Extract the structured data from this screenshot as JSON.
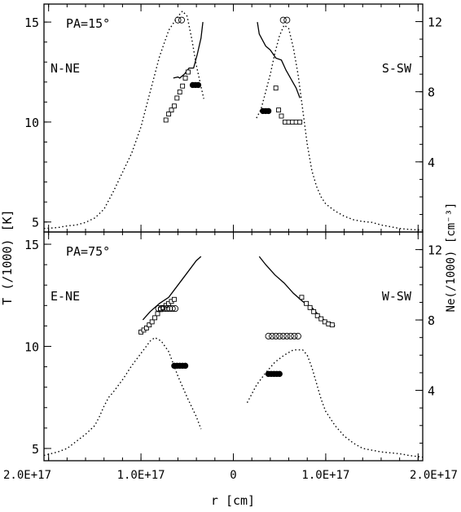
{
  "chart_data": {
    "type": "line",
    "xlabel": "r [cm]",
    "ylabel_left": "T (/1000) [K]",
    "ylabel_right": "Ne(/1000) [cm⁻³]",
    "x_tick_labels": [
      "2.0E+17",
      "1.0E+17",
      "0",
      "1.0E+17",
      "2.0E+17"
    ],
    "x_tick_values": [
      -2e+17,
      -1e+17,
      0,
      1e+17,
      2e+17
    ],
    "x_range": [
      -2.05e+17,
      2.05e+17
    ],
    "panels": [
      {
        "id": "top",
        "pa_label": "PA=15°",
        "left_label": "N-NE",
        "right_label": "S-SW",
        "y_left_range": [
          4.5,
          15.9
        ],
        "y_left_ticks": [
          5,
          10,
          15
        ],
        "y_right_ticks": [
          4,
          8,
          12
        ],
        "line_T": [
          [
            [
              -6.5e+16,
              12.2
            ],
            [
              -6e+16,
              12.25
            ],
            [
              -5.8e+16,
              12.2
            ],
            [
              -5.3e+16,
              12.4
            ],
            [
              -4.8e+16,
              12.7
            ],
            [
              -4.3e+16,
              12.7
            ],
            [
              -3.9e+16,
              13.4
            ],
            [
              -3.5e+16,
              14.2
            ],
            [
              -3.3e+16,
              15.0
            ]
          ],
          [
            [
              2.6e+16,
              15.0
            ],
            [
              2.8e+16,
              14.4
            ],
            [
              3.5e+16,
              13.8
            ],
            [
              4e+16,
              13.6
            ],
            [
              4.6e+16,
              13.2
            ],
            [
              5.2e+16,
              13.1
            ],
            [
              5.7e+16,
              12.6
            ],
            [
              6.3e+16,
              12.1
            ],
            [
              6.8e+16,
              11.7
            ],
            [
              7.2e+16,
              11.2
            ]
          ]
        ],
        "dotted_Ne": [
          [
            [
              -2.05e+17,
              0.2
            ],
            [
              -1.9e+17,
              0.25
            ],
            [
              -1.8e+17,
              0.35
            ],
            [
              -1.7e+17,
              0.4
            ],
            [
              -1.6e+17,
              0.55
            ],
            [
              -1.5e+17,
              0.8
            ],
            [
              -1.4e+17,
              1.3
            ],
            [
              -1.3e+17,
              2.3
            ],
            [
              -1.2e+17,
              3.4
            ],
            [
              -1.1e+17,
              4.5
            ],
            [
              -1e+17,
              6.0
            ],
            [
              -9e+16,
              8.0
            ],
            [
              -8e+16,
              10.0
            ],
            [
              -7e+16,
              11.5
            ],
            [
              -6e+16,
              12.3
            ],
            [
              -5.5e+16,
              12.6
            ],
            [
              -5e+16,
              12.3
            ],
            [
              -4.5e+16,
              11.0
            ],
            [
              -4e+16,
              9.5
            ],
            [
              -3.5e+16,
              8.3
            ],
            [
              -3.2e+16,
              7.6
            ]
          ],
          [
            [
              2.5e+16,
              6.5
            ],
            [
              3e+16,
              7.0
            ],
            [
              3.5e+16,
              8.0
            ],
            [
              4e+16,
              9.0
            ],
            [
              4.5e+16,
              10.2
            ],
            [
              5e+16,
              11.2
            ],
            [
              5.5e+16,
              11.8
            ],
            [
              6e+16,
              11.6
            ],
            [
              6.5e+16,
              10.5
            ],
            [
              7e+16,
              9.0
            ],
            [
              7.5e+16,
              7.0
            ],
            [
              8e+16,
              5.0
            ],
            [
              8.5e+16,
              3.5
            ],
            [
              9e+16,
              2.6
            ],
            [
              9.5e+16,
              2.0
            ],
            [
              1e+17,
              1.6
            ],
            [
              1.1e+17,
              1.2
            ],
            [
              1.2e+17,
              0.9
            ],
            [
              1.3e+17,
              0.7
            ],
            [
              1.4e+17,
              0.6
            ],
            [
              1.5e+17,
              0.55
            ],
            [
              1.6e+17,
              0.4
            ],
            [
              1.7e+17,
              0.3
            ],
            [
              1.8e+17,
              0.2
            ],
            [
              1.9e+17,
              0.15
            ],
            [
              2.05e+17,
              0.1
            ]
          ]
        ],
        "squares": [
          [
            -7.3e+16,
            10.1
          ],
          [
            -7e+16,
            10.4
          ],
          [
            -6.7e+16,
            10.6
          ],
          [
            -6.4e+16,
            10.8
          ],
          [
            -6.1e+16,
            11.2
          ],
          [
            -5.8e+16,
            11.5
          ],
          [
            -5.5e+16,
            11.8
          ],
          [
            -5.2e+16,
            12.2
          ],
          [
            -4.9e+16,
            12.5
          ],
          [
            4.6e+16,
            11.7
          ],
          [
            4.9e+16,
            10.6
          ],
          [
            5.2e+16,
            10.3
          ],
          [
            5.6e+16,
            10.0
          ],
          [
            6e+16,
            10.0
          ],
          [
            6.4e+16,
            10.0
          ],
          [
            6.8e+16,
            10.0
          ],
          [
            7.2e+16,
            10.0
          ]
        ],
        "circles": [
          [
            -6e+16,
            15.1
          ],
          [
            -5.6e+16,
            15.1
          ],
          [
            5.4e+16,
            15.1
          ],
          [
            5.8e+16,
            15.1
          ]
        ],
        "filled": [
          [
            -4.4e+16,
            11.85
          ],
          [
            -4.1e+16,
            11.85
          ],
          [
            -3.8e+16,
            11.85
          ],
          [
            3.2e+16,
            10.55
          ],
          [
            3.5e+16,
            10.55
          ],
          [
            3.8e+16,
            10.55
          ]
        ]
      },
      {
        "id": "bottom",
        "pa_label": "PA=75°",
        "left_label": "E-NE",
        "right_label": "W-SW",
        "y_left_range": [
          4.4,
          15.6
        ],
        "y_left_ticks": [
          5,
          10,
          15
        ],
        "y_right_ticks": [
          4,
          8,
          12
        ],
        "line_T": [
          [
            [
              -9.8e+16,
              11.3
            ],
            [
              -9e+16,
              11.7
            ],
            [
              -8e+16,
              12.1
            ],
            [
              -7e+16,
              12.4
            ],
            [
              -6e+16,
              13.0
            ],
            [
              -5e+16,
              13.6
            ],
            [
              -4e+16,
              14.2
            ],
            [
              -3.5e+16,
              14.4
            ]
          ],
          [
            [
              2.8e+16,
              14.4
            ],
            [
              3.5e+16,
              14.0
            ],
            [
              4.5e+16,
              13.5
            ],
            [
              5.5e+16,
              13.1
            ],
            [
              6.5e+16,
              12.6
            ],
            [
              7.5e+16,
              12.2
            ],
            [
              8.5e+16,
              11.9
            ],
            [
              9.5e+16,
              11.4
            ],
            [
              1.05e+17,
              11.1
            ],
            [
              1.1e+17,
              11.0
            ]
          ]
        ],
        "dotted_Ne": [
          [
            [
              -2.05e+17,
              0.3
            ],
            [
              -1.9e+17,
              0.5
            ],
            [
              -1.8e+17,
              0.7
            ],
            [
              -1.7e+17,
              1.1
            ],
            [
              -1.6e+17,
              1.5
            ],
            [
              -1.5e+17,
              2.0
            ],
            [
              -1.45e+17,
              2.5
            ],
            [
              -1.4e+17,
              3.1
            ],
            [
              -1.35e+17,
              3.6
            ],
            [
              -1.3e+17,
              3.9
            ],
            [
              -1.2e+17,
              4.6
            ],
            [
              -1.1e+17,
              5.4
            ],
            [
              -1e+17,
              6.1
            ],
            [
              -9e+16,
              6.8
            ],
            [
              -8.5e+16,
              7.0
            ],
            [
              -7.8e+16,
              6.8
            ],
            [
              -7e+16,
              6.2
            ],
            [
              -6e+16,
              4.8
            ],
            [
              -5e+16,
              3.6
            ],
            [
              -4e+16,
              2.5
            ],
            [
              -3.5e+16,
              1.8
            ]
          ],
          [
            [
              1.5e+16,
              3.3
            ],
            [
              2.5e+16,
              4.3
            ],
            [
              3.5e+16,
              5.0
            ],
            [
              4.5e+16,
              5.6
            ],
            [
              5.5e+16,
              6.0
            ],
            [
              6.5e+16,
              6.3
            ],
            [
              7.5e+16,
              6.3
            ],
            [
              8e+16,
              6.0
            ],
            [
              8.5e+16,
              5.3
            ],
            [
              9e+16,
              4.4
            ],
            [
              9.5e+16,
              3.5
            ],
            [
              1e+17,
              2.8
            ],
            [
              1.1e+17,
              2.0
            ],
            [
              1.2e+17,
              1.4
            ],
            [
              1.3e+17,
              1.0
            ],
            [
              1.4e+17,
              0.7
            ],
            [
              1.6e+17,
              0.5
            ],
            [
              1.8e+17,
              0.4
            ],
            [
              1.9e+17,
              0.3
            ],
            [
              2.05e+17,
              0.2
            ]
          ]
        ],
        "squares": [
          [
            -1e+17,
            10.7
          ],
          [
            -9.7e+16,
            10.8
          ],
          [
            -9.4e+16,
            10.9
          ],
          [
            -9.1e+16,
            11.05
          ],
          [
            -8.8e+16,
            11.2
          ],
          [
            -8.5e+16,
            11.4
          ],
          [
            -8.2e+16,
            11.6
          ],
          [
            -7.9e+16,
            11.8
          ],
          [
            -7.6e+16,
            11.9
          ],
          [
            -7.3e+16,
            12.0
          ],
          [
            -7e+16,
            12.1
          ],
          [
            -6.7e+16,
            12.2
          ],
          [
            -6.4e+16,
            12.3
          ],
          [
            7.4e+16,
            12.4
          ],
          [
            7.9e+16,
            12.1
          ],
          [
            8.3e+16,
            11.9
          ],
          [
            8.7e+16,
            11.7
          ],
          [
            9.1e+16,
            11.5
          ],
          [
            9.5e+16,
            11.35
          ],
          [
            9.9e+16,
            11.2
          ],
          [
            1.03e+17,
            11.1
          ],
          [
            1.07e+17,
            11.05
          ]
        ],
        "circles": [
          [
            -8.1e+16,
            11.85
          ],
          [
            -7.8e+16,
            11.85
          ],
          [
            -7.5e+16,
            11.85
          ],
          [
            -7.2e+16,
            11.85
          ],
          [
            -6.9e+16,
            11.85
          ],
          [
            -6.6e+16,
            11.85
          ],
          [
            -6.3e+16,
            11.85
          ],
          [
            3.8e+16,
            10.5
          ],
          [
            4.2e+16,
            10.5
          ],
          [
            4.6e+16,
            10.5
          ],
          [
            5e+16,
            10.5
          ],
          [
            5.4e+16,
            10.5
          ],
          [
            5.8e+16,
            10.5
          ],
          [
            6.2e+16,
            10.5
          ],
          [
            6.6e+16,
            10.5
          ],
          [
            7e+16,
            10.5
          ]
        ],
        "filled": [
          [
            -6.4e+16,
            9.05
          ],
          [
            -6.1e+16,
            9.05
          ],
          [
            -5.8e+16,
            9.05
          ],
          [
            -5.5e+16,
            9.05
          ],
          [
            -5.2e+16,
            9.05
          ],
          [
            3.8e+16,
            8.65
          ],
          [
            4.1e+16,
            8.65
          ],
          [
            4.4e+16,
            8.65
          ],
          [
            4.7e+16,
            8.65
          ],
          [
            5e+16,
            8.65
          ]
        ]
      }
    ]
  }
}
